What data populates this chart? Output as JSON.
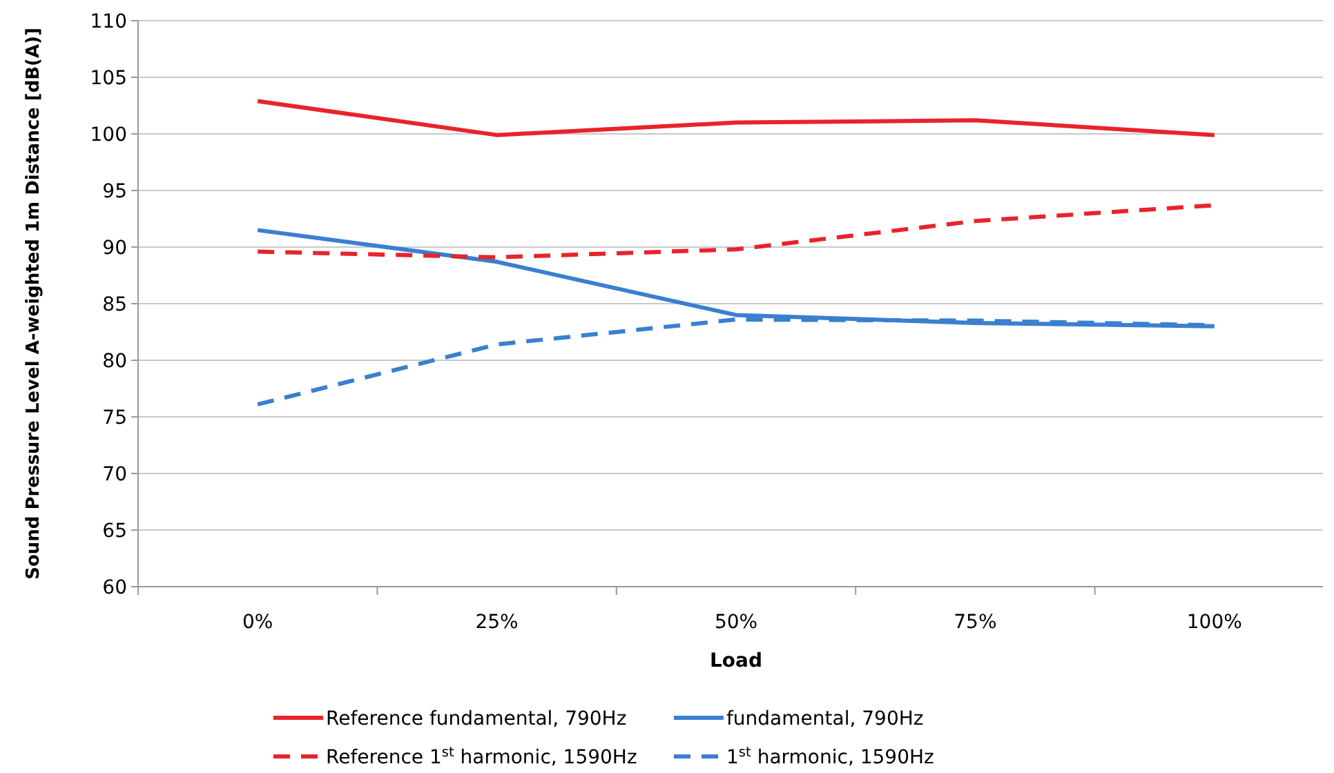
{
  "chart_data": {
    "type": "line",
    "xlabel": "Load",
    "ylabel": "Sound Pressure Level A-weighted 1m Distance [dB(A)]",
    "categories": [
      "0%",
      "25%",
      "50%",
      "75%",
      "100%"
    ],
    "ylim": [
      60,
      110
    ],
    "yticks": [
      60,
      65,
      70,
      75,
      80,
      85,
      90,
      95,
      100,
      105,
      110
    ],
    "grid": "y",
    "legend": "bottom",
    "series": [
      {
        "name": "Reference fundamental,  790Hz",
        "color": "#e8232c",
        "line_style": "solid",
        "values": [
          102.9,
          99.9,
          101.0,
          101.2,
          99.9
        ]
      },
      {
        "name": "fundamental,  790Hz",
        "color": "#3a7fd0",
        "line_style": "solid",
        "values": [
          91.5,
          88.7,
          84.0,
          83.3,
          83.0
        ]
      },
      {
        "name": "Reference 1$^{st}$ harmonic, 1590Hz",
        "color": "#e8232c",
        "line_style": "dashed",
        "values": [
          89.6,
          89.1,
          89.8,
          92.3,
          93.7
        ]
      },
      {
        "name": "1$^{st}$ harmonic, 1590Hz",
        "color": "#3a7fd0",
        "line_style": "dashed",
        "values": [
          76.1,
          81.4,
          83.6,
          83.5,
          83.1
        ]
      }
    ]
  }
}
